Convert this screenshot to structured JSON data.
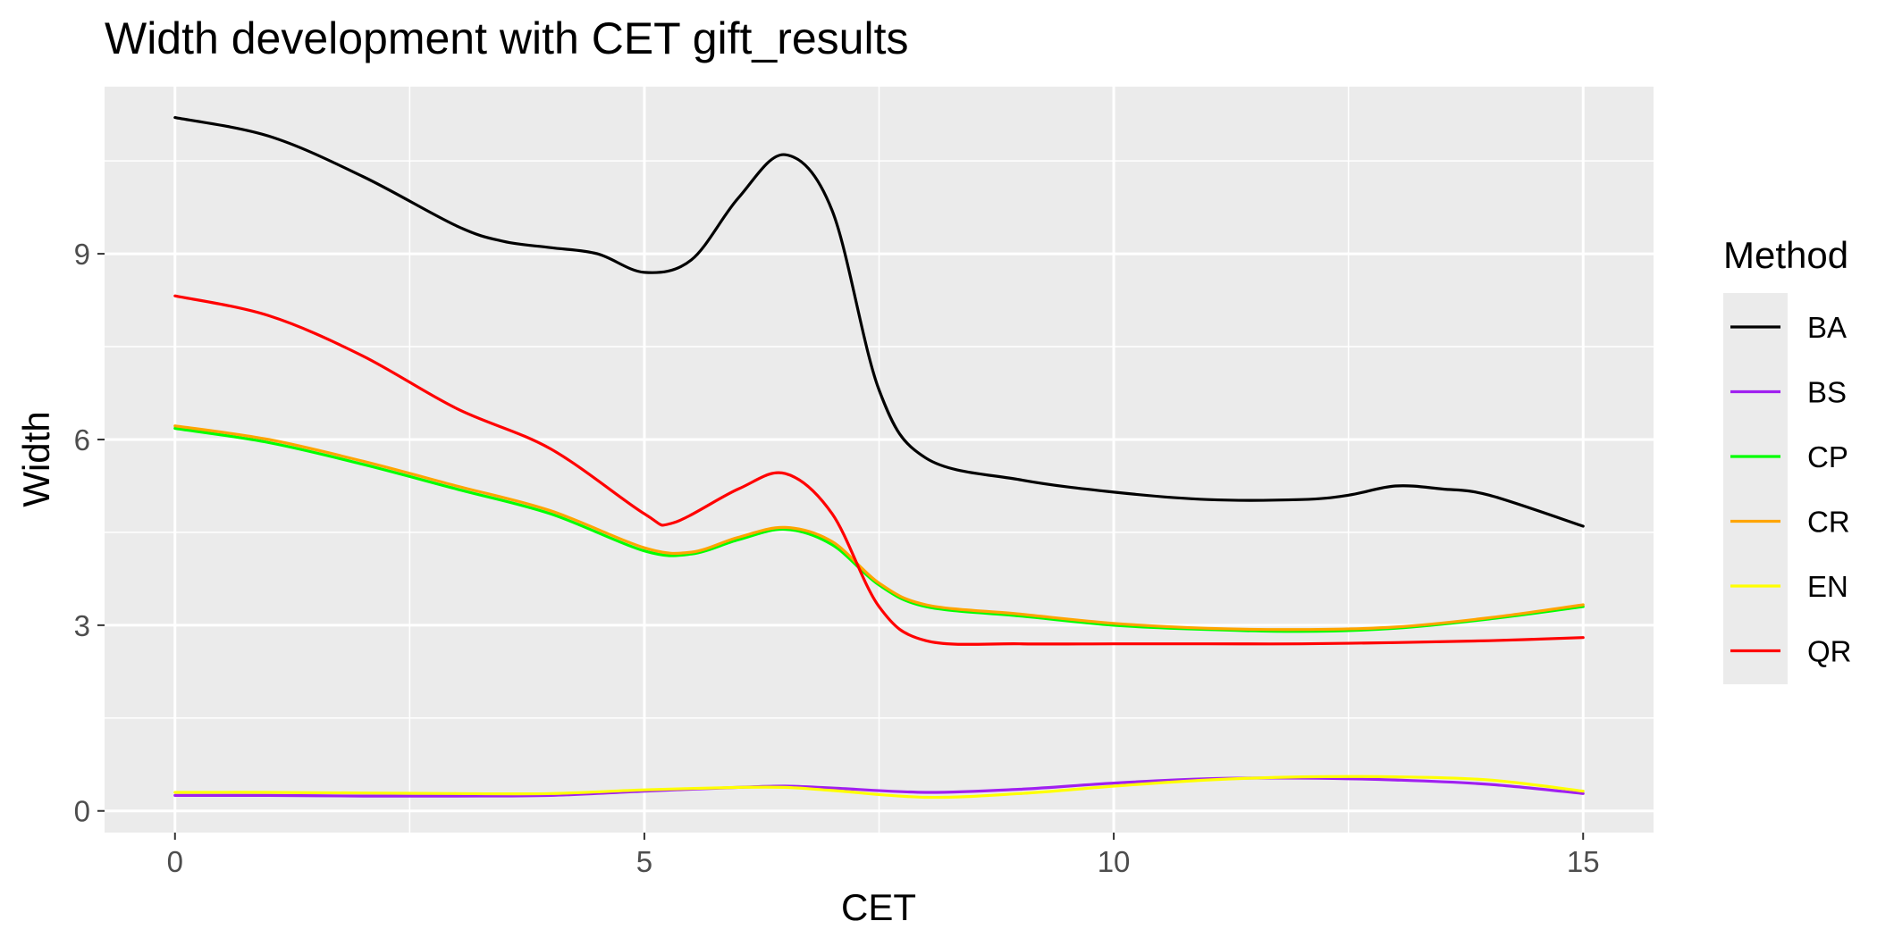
{
  "chart_data": {
    "type": "line",
    "title": "Width development with CET gift_results",
    "xlabel": "CET",
    "ylabel": "Width",
    "xlim": [
      -0.75,
      15.75
    ],
    "ylim": [
      -0.35,
      11.7
    ],
    "x_ticks": [
      0,
      5,
      10,
      15
    ],
    "x_tick_labels": [
      "0",
      "5",
      "10",
      "15"
    ],
    "y_ticks": [
      0,
      3,
      6,
      9
    ],
    "y_tick_labels": [
      "0",
      "3",
      "6",
      "9"
    ],
    "grid": true,
    "background": "#ebebeb",
    "legend": {
      "title": "Method",
      "position": "right"
    },
    "series": [
      {
        "name": "BA",
        "color": "#000000",
        "x": [
          0,
          1,
          2,
          3,
          3.5,
          4,
          4.5,
          5,
          5.5,
          6,
          6.5,
          7,
          7.5,
          8,
          9,
          10,
          11,
          12,
          12.5,
          13,
          13.5,
          14,
          15
        ],
        "y": [
          11.2,
          10.9,
          10.25,
          9.45,
          9.2,
          9.1,
          9.0,
          8.7,
          8.9,
          9.9,
          10.6,
          9.7,
          6.8,
          5.7,
          5.35,
          5.15,
          5.03,
          5.03,
          5.1,
          5.25,
          5.2,
          5.1,
          4.6
        ]
      },
      {
        "name": "BS",
        "color": "#a020f0",
        "x": [
          0,
          1,
          2,
          3,
          4,
          5,
          6,
          6.5,
          7,
          8,
          9,
          10,
          11,
          12,
          13,
          14,
          15
        ],
        "y": [
          0.25,
          0.25,
          0.24,
          0.24,
          0.25,
          0.32,
          0.38,
          0.4,
          0.37,
          0.3,
          0.35,
          0.45,
          0.52,
          0.53,
          0.5,
          0.43,
          0.28
        ]
      },
      {
        "name": "CP",
        "color": "#00ff00",
        "x": [
          0,
          1,
          2,
          3,
          4,
          5,
          5.5,
          6,
          6.5,
          7,
          7.5,
          8,
          9,
          10,
          11,
          12,
          13,
          14,
          15
        ],
        "y": [
          6.18,
          5.95,
          5.6,
          5.2,
          4.8,
          4.2,
          4.15,
          4.38,
          4.55,
          4.3,
          3.65,
          3.3,
          3.15,
          3.0,
          2.93,
          2.9,
          2.95,
          3.1,
          3.3
        ]
      },
      {
        "name": "CR",
        "color": "#ffa500",
        "x": [
          0,
          1,
          2,
          3,
          4,
          5,
          5.5,
          6,
          6.5,
          7,
          7.5,
          8,
          9,
          10,
          11,
          12,
          13,
          14,
          15
        ],
        "y": [
          6.22,
          6.0,
          5.65,
          5.25,
          4.85,
          4.25,
          4.18,
          4.42,
          4.58,
          4.35,
          3.68,
          3.33,
          3.18,
          3.03,
          2.95,
          2.93,
          2.97,
          3.12,
          3.33
        ]
      },
      {
        "name": "EN",
        "color": "#ffff00",
        "x": [
          0,
          1,
          2,
          3,
          4,
          5,
          6,
          6.5,
          7,
          8,
          9,
          10,
          11,
          12,
          13,
          14,
          15
        ],
        "y": [
          0.3,
          0.3,
          0.29,
          0.28,
          0.28,
          0.34,
          0.38,
          0.38,
          0.33,
          0.22,
          0.28,
          0.4,
          0.5,
          0.55,
          0.55,
          0.5,
          0.32
        ]
      },
      {
        "name": "QR",
        "color": "#ff0000",
        "x": [
          0,
          1,
          2,
          3,
          4,
          5,
          5.3,
          6,
          6.5,
          7,
          7.5,
          8,
          9,
          10,
          11,
          12,
          13,
          14,
          15
        ],
        "y": [
          8.32,
          8.0,
          7.35,
          6.5,
          5.85,
          4.8,
          4.65,
          5.2,
          5.45,
          4.8,
          3.3,
          2.75,
          2.7,
          2.7,
          2.7,
          2.7,
          2.72,
          2.75,
          2.8
        ]
      }
    ]
  }
}
